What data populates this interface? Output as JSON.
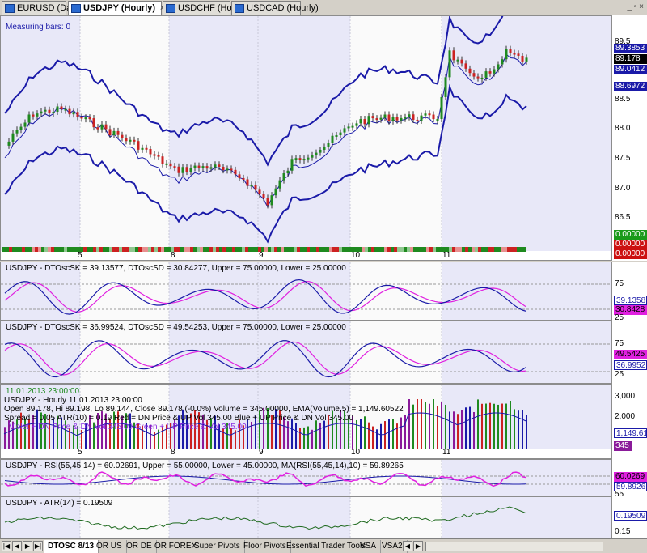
{
  "tabs": [
    {
      "label": "EURUSD (Daily)",
      "active": false
    },
    {
      "label": "USDJPY (Hourly)",
      "active": true
    },
    {
      "label": "USDCHF (Hourly)",
      "active": false
    },
    {
      "label": "USDCAD (Hourly)",
      "active": false
    }
  ],
  "close_glyph": "×",
  "window_buttons": "_ ▫ ×",
  "main": {
    "measuring": "Measuring bars: 0",
    "price_ticks": [
      "89.5",
      "88.5",
      "88.0",
      "87.5",
      "87.0",
      "86.5"
    ],
    "bb_upper": "89.3853",
    "last_price": "89.178",
    "bb_mid": "89.0412",
    "bb_lower": "88.6972",
    "strip_values": [
      "0.00000",
      "0.00000",
      "0.00000"
    ],
    "day_labels": [
      "5",
      "8",
      "9",
      "10",
      "11"
    ]
  },
  "dto1": {
    "title": "USDJPY - DTOscSK = 39.13577, DTOscSD = 30.84277, Upper = 75.00000, Lower = 25.00000",
    "sk": "39.1358",
    "sd": "30.8428",
    "t75": "75",
    "t25": "25"
  },
  "dto2": {
    "title": "USDJPY - DTOscSK = 36.99524, DTOscSD = 49.54253, Upper = 75.00000, Lower = 25.00000",
    "sk": "36.9952",
    "sd": "49.5425",
    "t75": "75",
    "t25": "25"
  },
  "vsa": {
    "line1": "11.01.2013 23:00:00",
    "line2": "USDJPY - Hourly 11.01.2013 23:00:00",
    "line3": "Open 89.178, Hi 89.198, Lo 89.144, Close 89.178 (-0.0%) Volume = 345.00000, EMA(Volume,5) = 1,149.60522",
    "line4": "Spread = 0.05  ATR(10) = 0.19   Red = DN Price & UP Vol 345.00     Blue + UP Price & DN Vol 345.00",
    "line5": "Violet + DN Price & DN Vol 345.00    Green + UP Price & Vol 345.00",
    "ticks": [
      "3,000",
      "2,000"
    ],
    "ema": "1,149.61",
    "vol": "345"
  },
  "rsi": {
    "title": "USDJPY - RSI(55,45,14) = 60.02691, Upper = 55.00000, Lower = 45.00000, MA(RSI(55,45,14),10) = 59.89265",
    "rsi": "60.0269",
    "ma": "59.8926",
    "t55": "55"
  },
  "atr": {
    "title": "USDJPY - ATR(14) = 0.19509",
    "val": "0.19509",
    "t015": "0.15"
  },
  "bottom_tabs": [
    "DTOSC 8/13",
    "OR US",
    "OR DE",
    "OR FOREX",
    "Super Pivots",
    "Floor Pivots",
    "Essential Trader Tools",
    "VSA",
    "VSA2"
  ],
  "colors": {
    "band": "#1a1aa8",
    "bull": "#1f8a1f",
    "bear": "#cc2222",
    "magenta": "#e020e0",
    "shade": "#e8e8f8"
  }
}
